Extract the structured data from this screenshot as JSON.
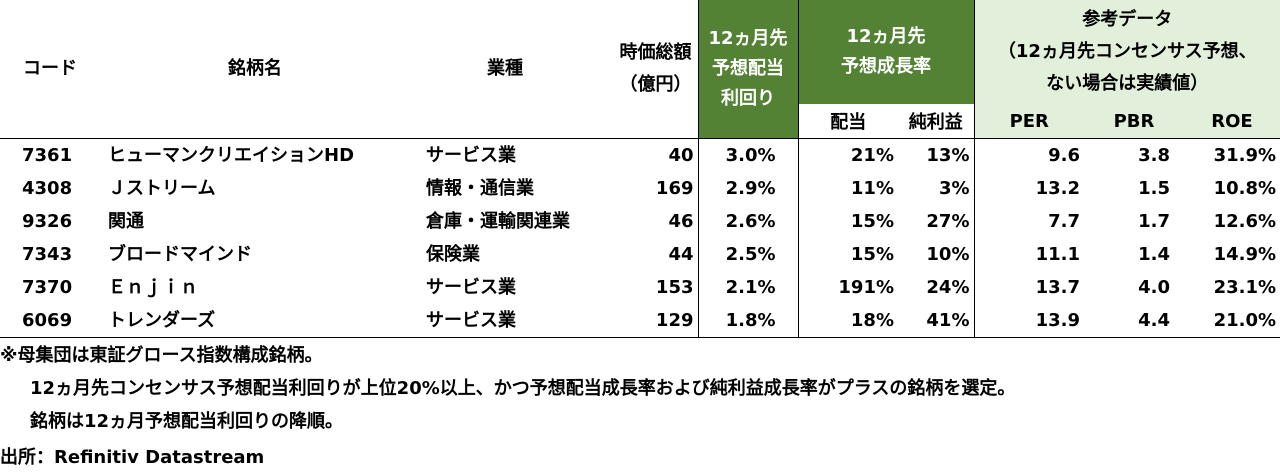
{
  "header": {
    "code": "コード",
    "name": "銘柄名",
    "industry": "業種",
    "mcap": [
      "時価総額",
      "（億円）"
    ],
    "div_yield": [
      "12ヵ月先",
      "予想配当",
      "利回り"
    ],
    "growth": [
      "12ヵ月先",
      "予想成長率"
    ],
    "growth_div": "配当",
    "growth_ni": "純利益",
    "reference": [
      "参考データ",
      "（12ヵ月先コンセンサス予想、",
      "ない場合は実績値）"
    ],
    "per": "PER",
    "pbr": "PBR",
    "roe": "ROE"
  },
  "rows": [
    {
      "code": "7361",
      "name": "ヒューマンクリエイションHD",
      "industry": "サービス業",
      "mcap": "40",
      "yield": "3.0%",
      "g_div": "21%",
      "g_ni": "13%",
      "per": "9.6",
      "pbr": "3.8",
      "roe": "31.9%"
    },
    {
      "code": "4308",
      "name": "Ｊストリーム",
      "industry": "情報・通信業",
      "mcap": "169",
      "yield": "2.9%",
      "g_div": "11%",
      "g_ni": "3%",
      "per": "13.2",
      "pbr": "1.5",
      "roe": "10.8%"
    },
    {
      "code": "9326",
      "name": "関通",
      "industry": "倉庫・運輸関連業",
      "mcap": "46",
      "yield": "2.6%",
      "g_div": "15%",
      "g_ni": "27%",
      "per": "7.7",
      "pbr": "1.7",
      "roe": "12.6%"
    },
    {
      "code": "7343",
      "name": "ブロードマインド",
      "industry": "保険業",
      "mcap": "44",
      "yield": "2.5%",
      "g_div": "15%",
      "g_ni": "10%",
      "per": "11.1",
      "pbr": "1.4",
      "roe": "14.9%"
    },
    {
      "code": "7370",
      "name": "Ｅｎｊｉｎ",
      "industry": "サービス業",
      "mcap": "153",
      "yield": "2.1%",
      "g_div": "191%",
      "g_ni": "24%",
      "per": "13.7",
      "pbr": "4.0",
      "roe": "23.1%"
    },
    {
      "code": "6069",
      "name": "トレンダーズ",
      "industry": "サービス業",
      "mcap": "129",
      "yield": "1.8%",
      "g_div": "18%",
      "g_ni": "41%",
      "per": "13.9",
      "pbr": "4.4",
      "roe": "21.0%"
    }
  ],
  "notes": [
    "※母集団は東証グロース指数構成銘柄。",
    "12ヵ月先コンセンサス予想配当利回りが上位20%以上、かつ予想配当成長率および純利益成長率がプラスの銘柄を選定。",
    "銘柄は12ヵ月予想配当利回りの降順。"
  ],
  "source": "出所：Refinitiv Datastream"
}
